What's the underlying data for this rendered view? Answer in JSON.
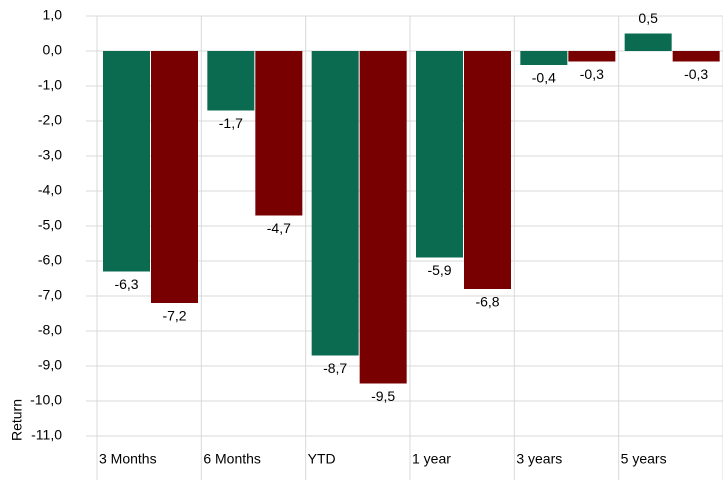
{
  "chart_data": {
    "type": "bar",
    "y_label": "Return",
    "categories": [
      "3 Months",
      "6 Months",
      "YTD",
      "1 year",
      "3 years",
      "5 years"
    ],
    "series": [
      {
        "color": "#0a6b50",
        "values": [
          -6.3,
          -1.7,
          -8.7,
          -5.9,
          -0.4,
          0.5
        ],
        "value_labels": [
          "-6,3",
          "-1,7",
          "-8,7",
          "-5,9",
          "-0,4",
          "0,5"
        ]
      },
      {
        "color": "#780000",
        "values": [
          -7.2,
          -4.7,
          -9.5,
          -6.8,
          -0.3,
          -0.3
        ],
        "value_labels": [
          "-7,2",
          "-4,7",
          "-9,5",
          "-6,8",
          "-0,3",
          "-0,3"
        ]
      }
    ],
    "ylim": [
      -11,
      1
    ],
    "yticks": [
      {
        "value": 1,
        "label": "1,0"
      },
      {
        "value": 0,
        "label": "0,0"
      },
      {
        "value": -1,
        "label": "-1,0"
      },
      {
        "value": -2,
        "label": "-2,0"
      },
      {
        "value": -3,
        "label": "-3,0"
      },
      {
        "value": -4,
        "label": "-4,0"
      },
      {
        "value": -5,
        "label": "-5,0"
      },
      {
        "value": -6,
        "label": "-6,0"
      },
      {
        "value": -7,
        "label": "-7,0"
      },
      {
        "value": -8,
        "label": "-8,0"
      },
      {
        "value": -9,
        "label": "-9,0"
      },
      {
        "value": -10,
        "label": "-10,0"
      },
      {
        "value": -11,
        "label": "-11,0"
      }
    ],
    "grid": true
  }
}
